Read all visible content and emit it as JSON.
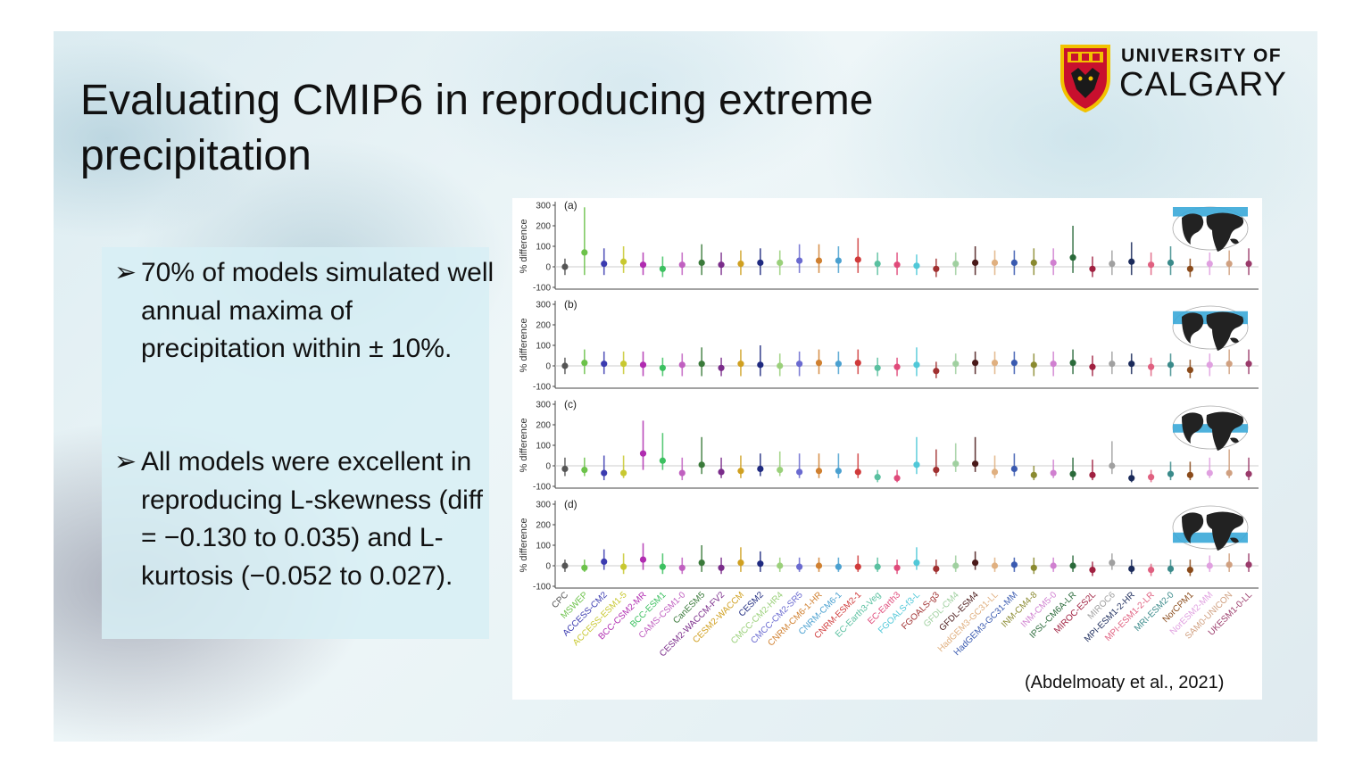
{
  "slide": {
    "title": "Evaluating CMIP6 in reproducing extreme precipitation",
    "logo": {
      "line1": "UNIVERSITY OF",
      "line2": "CALGARY"
    },
    "bullets": [
      "70% of models simulated well annual maxima of precipitation within ± 10%.",
      "All models were excellent in reproducing L-skewness (diff = −0.130 to 0.035) and L-kurtosis (−0.052 to 0.027)."
    ],
    "citation": "(Abdelmoaty et al., 2021)"
  },
  "chart_data": {
    "type": "scatter",
    "ylabel": "% difference",
    "yticks": [
      "300",
      "200",
      "100",
      "0",
      "-100"
    ],
    "ylim": [
      -100,
      300
    ],
    "categories": [
      "CPC",
      "MSWEP",
      "ACCESS-CM2",
      "ACCESS-ESM1-5",
      "BCC-CSM2-MR",
      "BCC-ESM1",
      "CAMS-CSM1-0",
      "CanESM5",
      "CESM2-WACCM-FV2",
      "CESM2-WACCM",
      "CESM2",
      "CMCC-CM2-HR4",
      "CMCC-CM2-SR5",
      "CNRM-CM6-1-HR",
      "CNRM-CM6-1",
      "CNRM-ESM2-1",
      "EC-Earth3-Veg",
      "EC-Earth3",
      "FGOALS-f3-L",
      "FGOALS-g3",
      "GFDL-CM4",
      "GFDL-ESM4",
      "HadGEM3-GC31-LL",
      "HadGEM3-GC31-MM",
      "INM-CM4-8",
      "INM-CM5-0",
      "IPSL-CM6A-LR",
      "MIROC-ES2L",
      "MIROC6",
      "MPI-ESM1-2-HR",
      "MPI-ESM1-2-LR",
      "MRI-ESM2-0",
      "NorCPM1",
      "NorESM2-MM",
      "SAM0-UNICON",
      "UKESM1-0-LL"
    ],
    "colors": [
      "#555555",
      "#6cc24a",
      "#3b3bb0",
      "#c8c830",
      "#b02cb0",
      "#3cc060",
      "#c060c0",
      "#3a7a3a",
      "#7a2c8a",
      "#d0a020",
      "#1f2a80",
      "#9ad07a",
      "#6a6ad0",
      "#d08030",
      "#4aa0d0",
      "#d03a3a",
      "#5ac0a0",
      "#e04a7a",
      "#50c8d8",
      "#a03030",
      "#a0d0a0",
      "#4a1a1a",
      "#e0b080",
      "#3a5ab0",
      "#8a8a30",
      "#d080d0",
      "#2a6a3a",
      "#a02040",
      "#a0a0a0",
      "#1a2a5a",
      "#e06080",
      "#3a8a8a",
      "#8a4a1a",
      "#e0a0e0",
      "#d0a080",
      "#9a3a6a"
    ],
    "panels": [
      {
        "label": "(a)",
        "values": [
          0,
          70,
          15,
          25,
          10,
          -10,
          10,
          20,
          10,
          15,
          20,
          20,
          30,
          30,
          30,
          35,
          15,
          10,
          5,
          -10,
          15,
          20,
          20,
          20,
          20,
          20,
          45,
          -10,
          15,
          25,
          10,
          20,
          -10,
          15,
          15,
          15
        ],
        "low": [
          -40,
          -40,
          -40,
          -30,
          -40,
          -50,
          -40,
          -40,
          -40,
          -40,
          -40,
          -40,
          -30,
          -30,
          -30,
          -30,
          -40,
          -40,
          -40,
          -50,
          -40,
          -40,
          -40,
          -40,
          -40,
          -40,
          -30,
          -50,
          -40,
          -40,
          -40,
          -40,
          -50,
          -40,
          -40,
          -40
        ],
        "high": [
          40,
          290,
          90,
          100,
          70,
          50,
          70,
          110,
          70,
          80,
          90,
          80,
          110,
          110,
          100,
          140,
          70,
          70,
          60,
          40,
          70,
          100,
          80,
          80,
          90,
          90,
          200,
          50,
          80,
          120,
          70,
          100,
          40,
          70,
          80,
          90
        ]
      },
      {
        "label": "(b)",
        "values": [
          0,
          15,
          10,
          10,
          5,
          -10,
          5,
          10,
          -10,
          10,
          5,
          0,
          10,
          15,
          10,
          15,
          -10,
          -5,
          5,
          -25,
          10,
          15,
          15,
          15,
          5,
          10,
          15,
          -5,
          10,
          10,
          -5,
          5,
          -20,
          5,
          10,
          10
        ],
        "low": [
          -40,
          -40,
          -40,
          -40,
          -50,
          -50,
          -50,
          -50,
          -50,
          -50,
          -50,
          -50,
          -50,
          -40,
          -40,
          -40,
          -50,
          -50,
          -50,
          -60,
          -40,
          -40,
          -40,
          -40,
          -50,
          -50,
          -40,
          -50,
          -40,
          -40,
          -50,
          -50,
          -60,
          -50,
          -40,
          -40
        ],
        "high": [
          40,
          80,
          70,
          70,
          70,
          40,
          60,
          90,
          40,
          80,
          100,
          60,
          70,
          80,
          70,
          80,
          40,
          40,
          90,
          20,
          60,
          70,
          70,
          70,
          60,
          70,
          80,
          50,
          70,
          60,
          40,
          60,
          30,
          60,
          80,
          80
        ]
      },
      {
        "label": "(c)",
        "values": [
          -15,
          -20,
          -35,
          -35,
          60,
          25,
          -35,
          5,
          -30,
          -25,
          -15,
          -20,
          -30,
          -25,
          -25,
          -30,
          -55,
          -60,
          5,
          -20,
          10,
          10,
          -30,
          -15,
          -45,
          -35,
          -40,
          -45,
          0,
          -60,
          -55,
          -40,
          -45,
          -35,
          -35,
          -40
        ],
        "low": [
          -50,
          -50,
          -70,
          -60,
          -20,
          -20,
          -70,
          -40,
          -60,
          -60,
          -50,
          -50,
          -60,
          -60,
          -60,
          -60,
          -80,
          -80,
          -40,
          -50,
          -30,
          -30,
          -60,
          -50,
          -70,
          -60,
          -70,
          -70,
          -40,
          -80,
          -80,
          -70,
          -70,
          -60,
          -60,
          -70
        ],
        "high": [
          40,
          40,
          50,
          50,
          220,
          160,
          40,
          140,
          40,
          50,
          60,
          70,
          60,
          60,
          60,
          60,
          -20,
          -20,
          140,
          80,
          110,
          140,
          50,
          60,
          0,
          30,
          40,
          30,
          120,
          -20,
          -20,
          20,
          20,
          40,
          80,
          40
        ]
      },
      {
        "label": "(d)",
        "values": [
          0,
          -10,
          20,
          -5,
          30,
          -5,
          -10,
          15,
          -10,
          15,
          10,
          0,
          -5,
          0,
          -5,
          -5,
          -5,
          -10,
          15,
          -15,
          0,
          15,
          0,
          5,
          -10,
          0,
          0,
          -20,
          15,
          -15,
          -20,
          -15,
          -20,
          0,
          5,
          5
        ],
        "low": [
          -30,
          -30,
          -20,
          -40,
          -20,
          -40,
          -40,
          -30,
          -40,
          -30,
          -30,
          -30,
          -30,
          -30,
          -30,
          -30,
          -30,
          -40,
          -20,
          -40,
          -30,
          -20,
          -30,
          -30,
          -40,
          -30,
          -30,
          -50,
          -20,
          -40,
          -50,
          -40,
          -50,
          -30,
          -30,
          -30
        ],
        "high": [
          30,
          30,
          80,
          60,
          110,
          60,
          40,
          100,
          40,
          90,
          70,
          40,
          40,
          40,
          40,
          50,
          40,
          30,
          90,
          30,
          50,
          70,
          40,
          40,
          40,
          40,
          50,
          20,
          60,
          30,
          10,
          30,
          30,
          50,
          60,
          60
        ]
      }
    ]
  }
}
